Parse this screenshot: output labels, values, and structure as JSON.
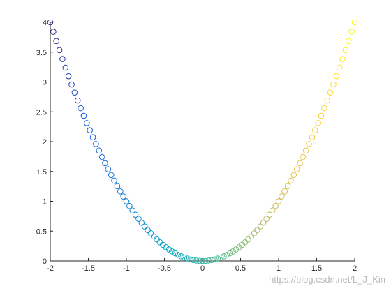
{
  "chart_data": {
    "type": "scatter",
    "x": [
      -2,
      -1.96,
      -1.92,
      -1.88,
      -1.84,
      -1.8,
      -1.76,
      -1.72,
      -1.68,
      -1.64,
      -1.6,
      -1.56,
      -1.52,
      -1.48,
      -1.44,
      -1.4,
      -1.36,
      -1.32,
      -1.28,
      -1.24,
      -1.2,
      -1.16,
      -1.12,
      -1.08,
      -1.04,
      -1,
      -0.96,
      -0.92,
      -0.88,
      -0.84,
      -0.8,
      -0.76,
      -0.72,
      -0.68,
      -0.64,
      -0.6,
      -0.56,
      -0.52,
      -0.48,
      -0.44,
      -0.4,
      -0.36,
      -0.32,
      -0.28,
      -0.24,
      -0.2,
      -0.16,
      -0.12,
      -0.08,
      -0.04,
      0,
      0.04,
      0.08,
      0.12,
      0.16,
      0.2,
      0.24,
      0.28,
      0.32,
      0.36,
      0.4,
      0.44,
      0.48,
      0.52,
      0.56,
      0.6,
      0.64,
      0.68,
      0.72,
      0.76,
      0.8,
      0.84,
      0.88,
      0.92,
      0.96,
      1,
      1.04,
      1.08,
      1.12,
      1.16,
      1.2,
      1.24,
      1.28,
      1.32,
      1.36,
      1.4,
      1.44,
      1.48,
      1.52,
      1.56,
      1.6,
      1.64,
      1.68,
      1.72,
      1.76,
      1.8,
      1.84,
      1.88,
      1.92,
      1.96,
      2
    ],
    "values": [
      4,
      3.8416,
      3.6864,
      3.5344,
      3.3856,
      3.24,
      3.0976,
      2.9584,
      2.8224,
      2.6896,
      2.56,
      2.4336,
      2.3104,
      2.1904,
      2.0736,
      1.96,
      1.8496,
      1.7424,
      1.6384,
      1.5376,
      1.44,
      1.3456,
      1.2544,
      1.1664,
      1.0816,
      1,
      0.9216,
      0.8464,
      0.7744,
      0.7056,
      0.64,
      0.5776,
      0.5184,
      0.4624,
      0.4096,
      0.36,
      0.3136,
      0.2704,
      0.2304,
      0.1936,
      0.16,
      0.1296,
      0.1024,
      0.0784,
      0.0576,
      0.04,
      0.0256,
      0.0144,
      0.0064,
      0.0016,
      0,
      0.0016,
      0.0064,
      0.0144,
      0.0256,
      0.04,
      0.0576,
      0.0784,
      0.1024,
      0.1296,
      0.16,
      0.1936,
      0.2304,
      0.2704,
      0.3136,
      0.36,
      0.4096,
      0.4624,
      0.5184,
      0.5776,
      0.64,
      0.7056,
      0.7744,
      0.8464,
      0.9216,
      1,
      1.0816,
      1.1664,
      1.2544,
      1.3456,
      1.44,
      1.5376,
      1.6384,
      1.7424,
      1.8496,
      1.96,
      2.0736,
      2.1904,
      2.3104,
      2.4336,
      2.56,
      2.6896,
      2.8224,
      2.9584,
      3.0976,
      3.24,
      3.3856,
      3.5344,
      3.6864,
      3.8416,
      4
    ],
    "colormap": [
      "#352a87",
      "#0f5cdd",
      "#1481d6",
      "#06a4ca",
      "#2eb7a4",
      "#87bf77",
      "#d1bb59",
      "#fec832",
      "#f9fb0e"
    ],
    "xlim": [
      -2,
      2
    ],
    "xticks": [
      -2,
      -1.5,
      -1,
      -0.5,
      0,
      0.5,
      1,
      1.5,
      2
    ],
    "ylim": [
      0,
      4
    ],
    "yticks": [
      0,
      0.5,
      1,
      1.5,
      2,
      2.5,
      3,
      3.5,
      4
    ],
    "watermark": "https://blog.csdn.net/L_J_Kin"
  }
}
